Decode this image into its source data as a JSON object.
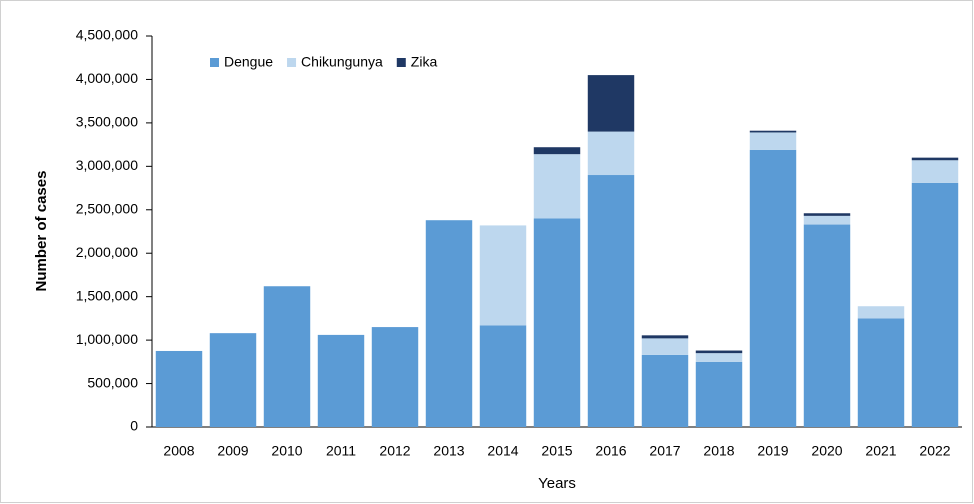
{
  "chart_data": {
    "type": "stacked-bar",
    "x_label": "Years",
    "y_label": "Number of cases",
    "categories": [
      "2008",
      "2009",
      "2010",
      "2011",
      "2012",
      "2013",
      "2014",
      "2015",
      "2016",
      "2017",
      "2018",
      "2019",
      "2020",
      "2021",
      "2022"
    ],
    "series": [
      {
        "name": "Dengue",
        "color": "#5b9bd5",
        "values": [
          875000,
          1080000,
          1620000,
          1060000,
          1150000,
          2380000,
          1170000,
          2400000,
          2900000,
          830000,
          750000,
          3190000,
          2330000,
          1250000,
          2810000
        ]
      },
      {
        "name": "Chikungunya",
        "color": "#bdd7ee",
        "values": [
          0,
          0,
          0,
          0,
          0,
          0,
          1150000,
          740000,
          500000,
          190000,
          100000,
          200000,
          100000,
          140000,
          260000
        ]
      },
      {
        "name": "Zika",
        "color": "#1f3864",
        "values": [
          0,
          0,
          0,
          0,
          0,
          0,
          0,
          80000,
          650000,
          35000,
          30000,
          20000,
          30000,
          0,
          30000
        ]
      }
    ],
    "ylim": [
      0,
      4500000
    ],
    "yticks": [
      0,
      {
        "value": 500000,
        "label": "500,000"
      },
      {
        "value": 1000000,
        "label": "1,000,000"
      },
      {
        "value": 1500000,
        "label": "1,500,000"
      },
      {
        "value": 2000000,
        "label": "2,000,000"
      },
      {
        "value": 2500000,
        "label": "2,500,000"
      },
      {
        "value": 3000000,
        "label": "3,000,000"
      },
      {
        "value": 3500000,
        "label": "3,500,000"
      },
      {
        "value": 4000000,
        "label": "4,000,000"
      },
      {
        "value": 4500000,
        "label": "4,500,000"
      }
    ],
    "legend": "top-left",
    "grid": false
  }
}
